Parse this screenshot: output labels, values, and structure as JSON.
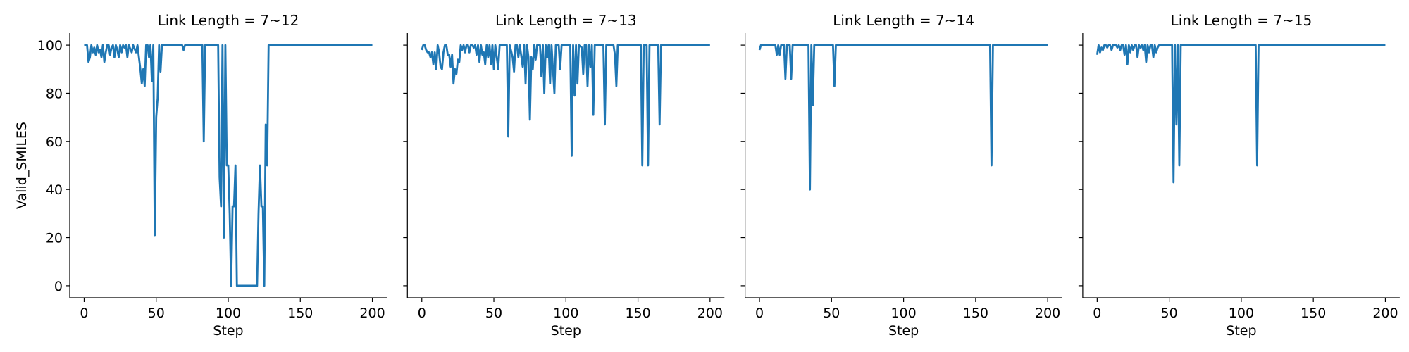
{
  "chart_data": [
    {
      "type": "line",
      "title": "Link Length = 7~12",
      "xlabel": "Step",
      "ylabel": "Valid_SMILES",
      "color": "#1f77b4",
      "xlim": [
        -10,
        210
      ],
      "ylim": [
        -5,
        105
      ],
      "xticks": [
        0,
        50,
        100,
        150,
        200
      ],
      "yticks": [
        0,
        20,
        40,
        60,
        80,
        100
      ],
      "x": [
        0,
        2,
        3,
        4,
        5,
        6,
        7,
        8,
        9,
        10,
        11,
        12,
        13,
        14,
        15,
        16,
        17,
        18,
        19,
        20,
        21,
        22,
        23,
        24,
        25,
        26,
        27,
        28,
        29,
        30,
        31,
        33,
        34,
        36,
        37,
        38,
        39,
        40,
        41,
        42,
        43,
        44,
        45,
        46,
        47,
        48,
        49,
        50,
        51,
        52,
        53,
        54,
        68,
        69,
        70,
        82,
        83,
        84,
        93,
        94,
        95,
        96,
        97,
        98,
        99,
        100,
        101,
        102,
        103,
        104,
        105,
        106,
        120,
        121,
        122,
        123,
        124,
        125,
        126,
        127,
        128,
        200
      ],
      "values": [
        100,
        100,
        93,
        95,
        100,
        97,
        99,
        96,
        100,
        97,
        98,
        95,
        100,
        93,
        97,
        100,
        100,
        96,
        99,
        100,
        95,
        100,
        98,
        95,
        100,
        97,
        100,
        99,
        100,
        95,
        100,
        97,
        100,
        97,
        100,
        95,
        90,
        84,
        90,
        83,
        100,
        100,
        95,
        100,
        85,
        100,
        21,
        70,
        78,
        100,
        89,
        100,
        100,
        98,
        100,
        100,
        60,
        100,
        100,
        45,
        33,
        100,
        20,
        100,
        50,
        50,
        30,
        0,
        33,
        33,
        50,
        0,
        0,
        30,
        50,
        33,
        33,
        0,
        67,
        50,
        100,
        100
      ]
    },
    {
      "type": "line",
      "title": "Link Length = 7~13",
      "xlabel": "Step",
      "color": "#1f77b4",
      "xlim": [
        -10,
        210
      ],
      "ylim": [
        -5,
        105
      ],
      "xticks": [
        0,
        50,
        100,
        150,
        200
      ],
      "x": [
        0,
        1,
        2,
        3,
        4,
        5,
        6,
        7,
        8,
        9,
        10,
        11,
        12,
        13,
        14,
        15,
        16,
        17,
        18,
        19,
        20,
        21,
        22,
        23,
        24,
        25,
        26,
        27,
        28,
        29,
        30,
        31,
        32,
        33,
        34,
        35,
        36,
        37,
        38,
        39,
        40,
        41,
        42,
        43,
        44,
        45,
        46,
        47,
        48,
        49,
        50,
        51,
        53,
        54,
        59,
        60,
        61,
        63,
        64,
        65,
        66,
        67,
        68,
        70,
        71,
        72,
        73,
        74,
        75,
        76,
        77,
        78,
        79,
        80,
        82,
        83,
        84,
        85,
        86,
        87,
        88,
        89,
        90,
        92,
        93,
        95,
        96,
        97,
        103,
        104,
        105,
        106,
        107,
        108,
        109,
        111,
        112,
        113,
        114,
        115,
        116,
        117,
        118,
        119,
        120,
        126,
        127,
        128,
        133,
        134,
        135,
        136,
        152,
        153,
        154,
        156,
        157,
        158,
        164,
        165,
        166,
        200
      ],
      "values": [
        98,
        100,
        100,
        98,
        97,
        97,
        95,
        97,
        92,
        97,
        90,
        100,
        97,
        91,
        90,
        97,
        100,
        100,
        96,
        96,
        91,
        96,
        84,
        90,
        88,
        94,
        93,
        100,
        98,
        100,
        97,
        100,
        100,
        97,
        100,
        100,
        99,
        100,
        96,
        100,
        93,
        100,
        96,
        97,
        92,
        100,
        95,
        100,
        92,
        100,
        90,
        100,
        90,
        100,
        100,
        62,
        100,
        95,
        89,
        100,
        100,
        95,
        100,
        91,
        100,
        84,
        100,
        95,
        69,
        95,
        90,
        100,
        94,
        100,
        100,
        87,
        100,
        80,
        100,
        95,
        100,
        84,
        100,
        80,
        100,
        100,
        90,
        100,
        100,
        54,
        100,
        79,
        100,
        84,
        100,
        99,
        88,
        100,
        100,
        83,
        100,
        91,
        100,
        71,
        100,
        100,
        67,
        100,
        100,
        96,
        83,
        100,
        100,
        50,
        100,
        100,
        50,
        100,
        100,
        67,
        100,
        100
      ]
    },
    {
      "type": "line",
      "title": "Link Length = 7~14",
      "xlabel": "Step",
      "color": "#1f77b4",
      "xlim": [
        -10,
        210
      ],
      "ylim": [
        -5,
        105
      ],
      "xticks": [
        0,
        50,
        100,
        150,
        200
      ],
      "x": [
        0,
        1,
        11,
        12,
        13,
        14,
        15,
        17,
        18,
        19,
        21,
        22,
        23,
        34,
        35,
        36,
        37,
        38,
        51,
        52,
        53,
        160,
        161,
        162,
        200
      ],
      "values": [
        98,
        100,
        100,
        96,
        100,
        96,
        100,
        100,
        86,
        100,
        100,
        86,
        100,
        100,
        40,
        100,
        75,
        100,
        100,
        83,
        100,
        100,
        50,
        100,
        100
      ]
    },
    {
      "type": "line",
      "title": "Link Length = 7~15",
      "xlabel": "Step",
      "color": "#1f77b4",
      "xlim": [
        -10,
        210
      ],
      "ylim": [
        -5,
        105
      ],
      "xticks": [
        0,
        50,
        100,
        150,
        200
      ],
      "x": [
        0,
        1,
        2,
        3,
        4,
        5,
        6,
        7,
        8,
        9,
        10,
        11,
        12,
        13,
        14,
        15,
        16,
        17,
        18,
        19,
        20,
        21,
        22,
        23,
        24,
        25,
        26,
        27,
        28,
        29,
        30,
        31,
        32,
        33,
        34,
        35,
        36,
        37,
        38,
        39,
        40,
        41,
        42,
        43,
        52,
        53,
        54,
        55,
        56,
        57,
        58,
        110,
        111,
        112,
        200
      ],
      "values": [
        96,
        100,
        97,
        99,
        98,
        100,
        100,
        99,
        100,
        100,
        98,
        100,
        100,
        100,
        99,
        100,
        98,
        100,
        100,
        96,
        100,
        92,
        100,
        97,
        100,
        98,
        100,
        100,
        95,
        100,
        99,
        100,
        98,
        100,
        93,
        100,
        97,
        100,
        100,
        95,
        100,
        97,
        99,
        100,
        100,
        43,
        100,
        67,
        100,
        50,
        100,
        100,
        50,
        100,
        100
      ]
    }
  ]
}
